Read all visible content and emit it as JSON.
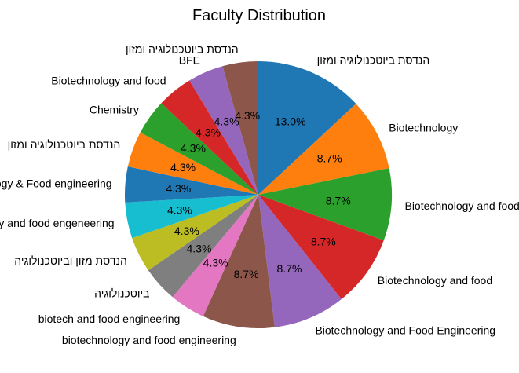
{
  "chart_data": {
    "type": "pie",
    "title": "Faculty Distribution",
    "start_angle_deg": 90,
    "direction": "clockwise",
    "slices": [
      {
        "label": "הנדסת ביוטכנולוגיה ומזון",
        "value": 13.0,
        "pct_label": "13.0%",
        "color": "#1f77b4"
      },
      {
        "label": "Biotechnology",
        "value": 8.7,
        "pct_label": "8.7%",
        "color": "#ff7f0e"
      },
      {
        "label": "Biotechnology and food engineering",
        "value": 8.7,
        "pct_label": "8.7%",
        "color": "#2ca02c"
      },
      {
        "label": "Biotechnology and food",
        "value": 8.7,
        "pct_label": "8.7%",
        "color": "#d62728"
      },
      {
        "label": "Biotechnology and Food Engineering",
        "value": 8.7,
        "pct_label": "8.7%",
        "color": "#9467bd"
      },
      {
        "label": "biotechnology and food engineering",
        "value": 8.7,
        "pct_label": "8.7%",
        "color": "#8c564b"
      },
      {
        "label": "biotech and food engineering",
        "value": 4.3,
        "pct_label": "4.3%",
        "color": "#e377c2"
      },
      {
        "label": "ביוטכנולוגיה",
        "value": 4.3,
        "pct_label": "4.3%",
        "color": "#7f7f7f"
      },
      {
        "label": "הנדסת מזון וביוטכנולוגיה",
        "value": 4.3,
        "pct_label": "4.3%",
        "color": "#bcbd22"
      },
      {
        "label": "Biotechnology and food engeneering",
        "value": 4.3,
        "pct_label": "4.3%",
        "color": "#17becf"
      },
      {
        "label": "Biotechnology & Food engineering",
        "value": 4.3,
        "pct_label": "4.3%",
        "color": "#1f77b4"
      },
      {
        "label": "הנדסת ביוטכנולוגיה ומזון",
        "value": 4.3,
        "pct_label": "4.3%",
        "color": "#ff7f0e"
      },
      {
        "label": "Chemistry",
        "value": 4.3,
        "pct_label": "4.3%",
        "color": "#2ca02c"
      },
      {
        "label": "Biotechnology and food",
        "value": 4.3,
        "pct_label": "4.3%",
        "color": "#d62728"
      },
      {
        "label": "BFE",
        "value": 4.3,
        "pct_label": "4.3%",
        "color": "#9467bd"
      },
      {
        "label": "הנדסת ביוטכנולוגיה ומזון",
        "value": 4.3,
        "pct_label": "4.3%",
        "color": "#8c564b"
      }
    ]
  }
}
